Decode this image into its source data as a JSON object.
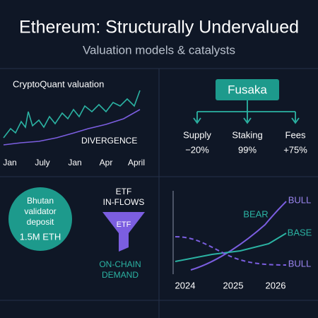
{
  "header": {
    "title": "Ethereum: Structurally Undervalued",
    "subtitle": "Valuation models & catalysts"
  },
  "valuation": {
    "title": "CryptoQuant valuation",
    "annotation": "DIVERGENCE",
    "x_labels": [
      "Jan",
      "July",
      "Jan",
      "Apr",
      "April"
    ]
  },
  "upgrade": {
    "name": "Fusaka",
    "items": [
      {
        "label": "Supply",
        "value": "−20%"
      },
      {
        "label": "Staking",
        "value": "99%"
      },
      {
        "label": "Fees",
        "value": "+75%"
      }
    ]
  },
  "bhutan": {
    "lines": [
      "Bhutan",
      "validator",
      "deposit"
    ],
    "amount": "1.5M ETH"
  },
  "funnel": {
    "top": [
      "ETF",
      "IN-FLOWS"
    ],
    "label": "ETF",
    "bottom": [
      "ON-CHAIN",
      "DEMAND"
    ]
  },
  "scenarios": {
    "labels": {
      "bull_top": "BULL",
      "bear": "BEAR",
      "base": "BASE",
      "bull_bottom": "BULL"
    },
    "x_labels": [
      "2024",
      "2025",
      "2026"
    ]
  }
}
